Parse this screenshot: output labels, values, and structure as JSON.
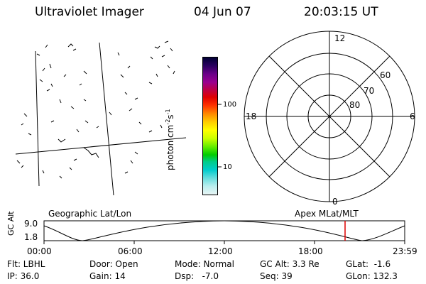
{
  "header": {
    "instrument": "Ultraviolet Imager",
    "date": "04 Jun 07",
    "time": "20:03:15 UT"
  },
  "colorbar": {
    "ticks": [
      "100",
      "10"
    ],
    "unit_base": "photon cm",
    "unit_exp1": "-2",
    "unit_mid": "s",
    "unit_exp2": "-1",
    "colors": [
      "#000033",
      "#2a0060",
      "#6a0088",
      "#9a0090",
      "#c00040",
      "#e00000",
      "#ff3300",
      "#ff8800",
      "#ffcc00",
      "#ffff00",
      "#ccff00",
      "#66ee00",
      "#00cc00",
      "#00cc88",
      "#00cccc",
      "#66dddd",
      "#bbeeee",
      "#e8f4f4"
    ]
  },
  "polar": {
    "lat_labels": [
      "60",
      "70",
      "80"
    ],
    "mlt_labels": {
      "top": "12",
      "left": "18",
      "right": "6",
      "bottom": "0"
    }
  },
  "altitude_panel": {
    "left_title": "Geographic Lat/Lon",
    "right_title": "Apex MLat/MLT",
    "y_axis_label": "GC Alt",
    "y_ticks": [
      "9.0",
      "1.8"
    ],
    "x_ticks": [
      "00:00",
      "06:00",
      "12:00",
      "18:00",
      "23:59"
    ],
    "marker_color": "#dd0000"
  },
  "info": {
    "filter": "Flt: LBHL",
    "door": "Door: Open",
    "mode": "Mode: Normal",
    "gc_alt": "GC Alt: 3.3 Re",
    "glat": "GLat:  -1.6",
    "ip": "IP: 36.0",
    "gain": "Gain: 14",
    "dsp": "Dsp:   -7.0",
    "seq": "Seq: 39",
    "glon": "GLon: 132.3"
  }
}
